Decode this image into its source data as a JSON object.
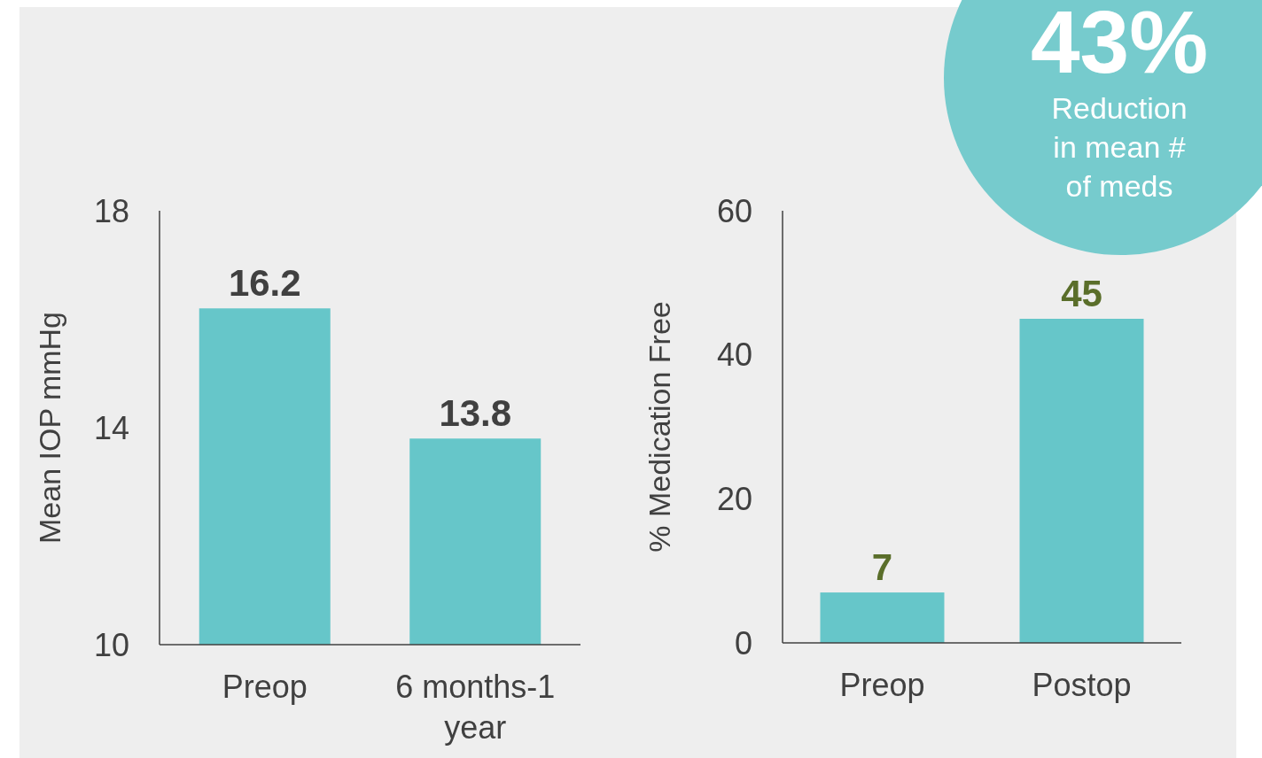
{
  "chart_data": [
    {
      "type": "bar",
      "ylabel": "Mean IOP mmHg",
      "categories": [
        "Preop",
        "6 months-1 year"
      ],
      "series": [
        {
          "color": "#66c6c9",
          "values": [
            16.2,
            13.8
          ]
        }
      ],
      "ylim": [
        10,
        18
      ],
      "yticks": [
        10,
        14,
        18
      ],
      "data_labels": true
    },
    {
      "type": "bar",
      "ylabel": "% Medication Free",
      "categories": [
        "Preop",
        "Postop"
      ],
      "series": [
        {
          "color": "#66c6c9",
          "values": [
            7,
            45
          ]
        }
      ],
      "ylim": [
        0,
        60
      ],
      "yticks": [
        0,
        20,
        40,
        60
      ],
      "data_labels": true,
      "annotations": [
        "43%",
        "Reduction in mean # of meds"
      ]
    }
  ]
}
